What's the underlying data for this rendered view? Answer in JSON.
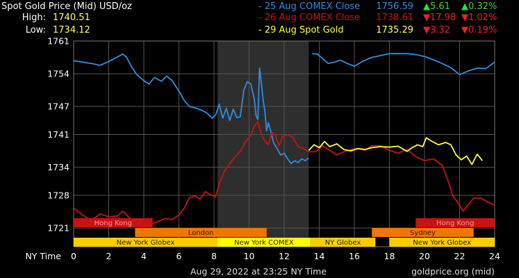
{
  "header": {
    "title": "Spot Gold Price (Mid) USD/oz",
    "high_label": "High:",
    "high_value": "1740.51",
    "low_label": "Low:",
    "low_value": "1734.12"
  },
  "legend": [
    {
      "label": "- 25 Aug COMEX Close",
      "price": "1756.59",
      "change": "▲5.61",
      "pct": "▲0.32%",
      "color": "#2f8fdf",
      "change_color": "#33dd33"
    },
    {
      "label": "- 26 Aug COMEX Close",
      "price": "1738.61",
      "change": "▼17.98",
      "pct": "▼1.02%",
      "color": "#cc1111",
      "change_color": "#ee2222"
    },
    {
      "label": "- 29 Aug Spot Gold",
      "price": "1735.29",
      "change": "▼3.32",
      "pct": "▼0.19%",
      "color": "#ffff33",
      "change_color": "#ee2222"
    }
  ],
  "footer": {
    "timestamp": "Aug 29, 2022 at 23:25 NY Time",
    "source": "goldprice.org (mid)"
  },
  "colors": {
    "background": "#000000",
    "grid": "#555555",
    "shaded_session": "#2e2e2e",
    "hong_kong": "#cc1111",
    "london": "#ee7700",
    "sydney": "#ee7700",
    "new_york": "#ffcc00"
  },
  "chart_data": {
    "type": "line",
    "xlabel": "NY Time",
    "xlim": [
      0,
      24
    ],
    "ylim": [
      1717,
      1761
    ],
    "x_ticks": [
      "0",
      "2",
      "4",
      "6",
      "8",
      "10",
      "12",
      "14",
      "16",
      "18",
      "20",
      "22",
      "24"
    ],
    "y_ticks": [
      "1761",
      "1754",
      "1747",
      "1741",
      "1734",
      "1728",
      "1721"
    ],
    "shaded_region": [
      8.2,
      13.4
    ],
    "series": [
      {
        "name": "25 Aug COMEX Close",
        "color": "#2f8fdf",
        "segments": [
          [
            [
              0,
              1756.8
            ],
            [
              0.5,
              1756.5
            ],
            [
              1,
              1756.2
            ],
            [
              1.5,
              1755.8
            ],
            [
              2,
              1756.6
            ],
            [
              2.5,
              1757.6
            ],
            [
              2.8,
              1758.2
            ],
            [
              3,
              1757.6
            ],
            [
              3.3,
              1755.5
            ],
            [
              3.6,
              1753.8
            ],
            [
              4,
              1752.5
            ],
            [
              4.3,
              1751.8
            ],
            [
              4.6,
              1753.2
            ],
            [
              5,
              1752.4
            ],
            [
              5.3,
              1753.5
            ],
            [
              5.6,
              1752.6
            ],
            [
              6,
              1750.3
            ],
            [
              6.3,
              1748.3
            ],
            [
              6.6,
              1747.0
            ],
            [
              7,
              1746.6
            ],
            [
              7.3,
              1746.2
            ],
            [
              7.6,
              1745.6
            ],
            [
              7.9,
              1744.5
            ],
            [
              8.1,
              1745.2
            ],
            [
              8.3,
              1747.5
            ],
            [
              8.5,
              1744.5
            ],
            [
              8.7,
              1746.6
            ],
            [
              8.9,
              1744.0
            ],
            [
              9.1,
              1746.4
            ],
            [
              9.3,
              1744.6
            ],
            [
              9.5,
              1744.8
            ],
            [
              9.7,
              1750.5
            ],
            [
              9.9,
              1752.3
            ],
            [
              10.1,
              1751.8
            ],
            [
              10.3,
              1748.5
            ],
            [
              10.4,
              1745.0
            ],
            [
              10.5,
              1744.2
            ],
            [
              10.6,
              1755.2
            ],
            [
              10.7,
              1752.0
            ],
            [
              10.8,
              1748.5
            ],
            [
              10.9,
              1746.0
            ],
            [
              11.0,
              1741.8
            ],
            [
              11.1,
              1743.5
            ],
            [
              11.2,
              1742.2
            ],
            [
              11.4,
              1739.2
            ],
            [
              11.6,
              1738.0
            ],
            [
              11.8,
              1736.6
            ],
            [
              12.0,
              1737.0
            ],
            [
              12.2,
              1735.8
            ],
            [
              12.4,
              1734.8
            ],
            [
              12.6,
              1735.4
            ],
            [
              12.8,
              1735.0
            ],
            [
              13.0,
              1735.8
            ],
            [
              13.2,
              1735.4
            ],
            [
              13.4,
              1736.0
            ]
          ],
          [
            [
              13.6,
              1758.3
            ],
            [
              13.9,
              1758.2
            ],
            [
              14.2,
              1757.2
            ],
            [
              14.5,
              1756.2
            ],
            [
              14.8,
              1756.4
            ],
            [
              15.2,
              1756.9
            ],
            [
              15.6,
              1756.2
            ],
            [
              16.0,
              1755.6
            ],
            [
              16.5,
              1756.7
            ],
            [
              17.0,
              1757.5
            ],
            [
              17.5,
              1757.9
            ],
            [
              18.0,
              1758.3
            ],
            [
              18.5,
              1758.3
            ],
            [
              19.0,
              1758.3
            ],
            [
              19.5,
              1758.1
            ],
            [
              20.0,
              1757.7
            ],
            [
              20.5,
              1757.0
            ],
            [
              21.0,
              1756.2
            ],
            [
              21.5,
              1755.3
            ],
            [
              22.0,
              1753.8
            ],
            [
              22.5,
              1754.6
            ],
            [
              23.0,
              1755.2
            ],
            [
              23.5,
              1755.1
            ],
            [
              24.0,
              1756.5
            ]
          ]
        ]
      },
      {
        "name": "26 Aug COMEX Close",
        "color": "#cc1111",
        "segments": [
          [
            [
              0,
              1725.3
            ],
            [
              0.5,
              1723.8
            ],
            [
              1,
              1722.6
            ],
            [
              1.5,
              1724.0
            ],
            [
              2,
              1723.4
            ],
            [
              2.5,
              1723.6
            ],
            [
              2.8,
              1724.6
            ],
            [
              3.1,
              1723.5
            ],
            [
              3.5,
              1722.0
            ],
            [
              3.8,
              1721.6
            ],
            [
              4.2,
              1721.6
            ],
            [
              4.5,
              1721.9
            ],
            [
              4.8,
              1722.4
            ],
            [
              5.2,
              1723.0
            ],
            [
              5.6,
              1722.8
            ],
            [
              6.0,
              1723.8
            ],
            [
              6.3,
              1725.2
            ],
            [
              6.6,
              1727.5
            ],
            [
              6.9,
              1727.9
            ],
            [
              7.2,
              1727.2
            ],
            [
              7.5,
              1728.8
            ],
            [
              7.8,
              1728.1
            ],
            [
              8.1,
              1727.7
            ],
            [
              8.3,
              1730.5
            ],
            [
              8.6,
              1733.2
            ],
            [
              8.9,
              1734.8
            ],
            [
              9.2,
              1736.2
            ],
            [
              9.5,
              1737.4
            ],
            [
              9.8,
              1739.5
            ],
            [
              10.1,
              1740.8
            ],
            [
              10.3,
              1742.8
            ],
            [
              10.5,
              1743.7
            ],
            [
              10.7,
              1741.2
            ],
            [
              10.9,
              1739.5
            ],
            [
              11.1,
              1738.8
            ],
            [
              11.3,
              1741.5
            ],
            [
              11.5,
              1740.8
            ],
            [
              11.7,
              1738.6
            ],
            [
              11.9,
              1740.5
            ],
            [
              12.2,
              1741.0
            ],
            [
              12.5,
              1740.4
            ],
            [
              12.8,
              1738.4
            ],
            [
              13.1,
              1738.0
            ],
            [
              13.4,
              1737.3
            ],
            [
              13.8,
              1737.3
            ],
            [
              14.2,
              1738.6
            ],
            [
              14.6,
              1737.6
            ],
            [
              15.0,
              1736.6
            ],
            [
              15.4,
              1737.3
            ],
            [
              15.8,
              1737.8
            ],
            [
              16.2,
              1738.0
            ],
            [
              16.6,
              1737.6
            ],
            [
              17.0,
              1738.6
            ],
            [
              17.5,
              1738.6
            ],
            [
              18.0,
              1737.6
            ],
            [
              18.5,
              1737.0
            ],
            [
              19.0,
              1737.8
            ],
            [
              19.5,
              1736.3
            ],
            [
              20.0,
              1735.4
            ],
            [
              20.5,
              1735.8
            ],
            [
              21.0,
              1734.4
            ],
            [
              21.3,
              1731.6
            ],
            [
              21.6,
              1728.0
            ],
            [
              21.9,
              1726.4
            ],
            [
              22.2,
              1724.6
            ],
            [
              22.5,
              1726.0
            ],
            [
              22.8,
              1727.4
            ],
            [
              23.2,
              1727.4
            ],
            [
              23.6,
              1726.6
            ],
            [
              24.0,
              1725.8
            ]
          ]
        ]
      },
      {
        "name": "29 Aug Spot Gold",
        "color": "#ffff33",
        "segments": [
          [
            [
              13.4,
              1737.6
            ],
            [
              13.7,
              1738.8
            ],
            [
              14.0,
              1738.2
            ],
            [
              14.3,
              1739.5
            ],
            [
              14.6,
              1738.4
            ],
            [
              15.0,
              1739.0
            ],
            [
              15.4,
              1737.8
            ],
            [
              15.8,
              1737.5
            ],
            [
              16.2,
              1738.0
            ],
            [
              16.6,
              1737.8
            ],
            [
              17.0,
              1738.2
            ],
            [
              17.5,
              1738.4
            ],
            [
              18.0,
              1738.3
            ],
            [
              18.5,
              1738.5
            ],
            [
              19.0,
              1737.4
            ],
            [
              19.3,
              1738.2
            ],
            [
              19.6,
              1738.8
            ],
            [
              19.9,
              1738.4
            ],
            [
              20.1,
              1740.3
            ],
            [
              20.4,
              1739.6
            ],
            [
              20.8,
              1738.8
            ],
            [
              21.2,
              1739.3
            ],
            [
              21.5,
              1738.8
            ],
            [
              21.8,
              1736.6
            ],
            [
              22.1,
              1735.6
            ],
            [
              22.4,
              1736.4
            ],
            [
              22.7,
              1734.6
            ],
            [
              23.0,
              1736.8
            ],
            [
              23.3,
              1735.4
            ]
          ]
        ]
      }
    ],
    "sessions": [
      {
        "name": "Hong Kong",
        "start": 0,
        "end": 4.5,
        "row": 0,
        "color": "#cc1111"
      },
      {
        "name": "Hong Kong",
        "start": 19.5,
        "end": 24,
        "row": 0,
        "color": "#cc1111"
      },
      {
        "name": "London",
        "start": 3.5,
        "end": 11,
        "row": 1,
        "color": "#ee7700"
      },
      {
        "name": "Sydney",
        "start": 17,
        "end": 22.8,
        "row": 1,
        "color": "#ee7700"
      },
      {
        "name": "New York Globex",
        "start": 0,
        "end": 8.2,
        "row": 2,
        "color": "#ffcc00"
      },
      {
        "name": "New York COMEX",
        "start": 8.2,
        "end": 13.5,
        "row": 2,
        "color": "#ffff00"
      },
      {
        "name": "NY Globex",
        "start": 13.5,
        "end": 17.2,
        "row": 2,
        "color": "#ffcc00"
      },
      {
        "name": "New York Globex",
        "start": 18,
        "end": 24,
        "row": 2,
        "color": "#ffcc00"
      }
    ]
  }
}
